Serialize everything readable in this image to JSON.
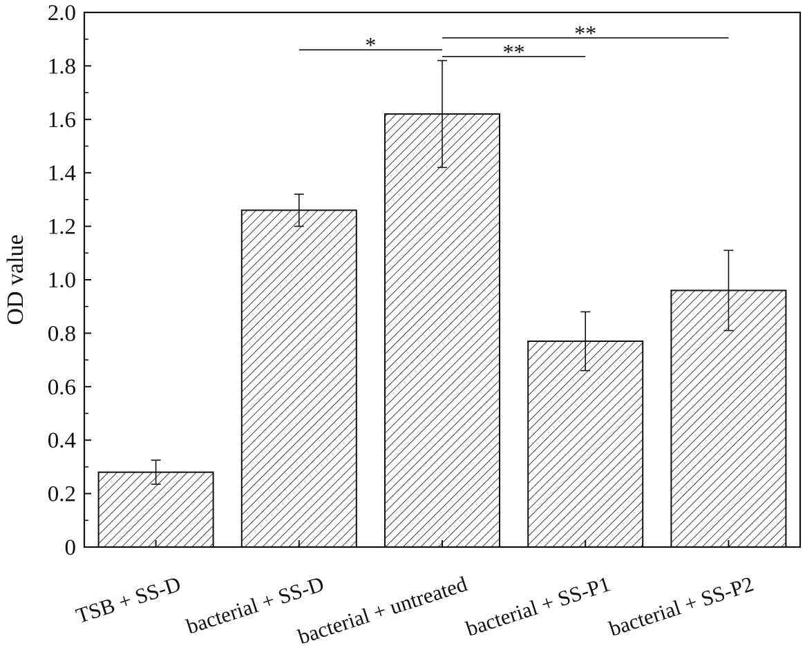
{
  "chart_data": {
    "type": "bar",
    "categories": [
      "TSB + SS-D",
      "bacterial + SS-D",
      "bacterial + untreated",
      "bacterial + SS-P1",
      "bacterial + SS-P2"
    ],
    "values": [
      0.28,
      1.26,
      1.62,
      0.77,
      0.96
    ],
    "errors": [
      0.045,
      0.06,
      0.2,
      0.11,
      0.15
    ],
    "xlabel": "",
    "ylabel": "OD value",
    "ylim": [
      0,
      2.0
    ],
    "yticks": [
      0,
      0.2,
      0.4,
      0.6,
      0.8,
      1.0,
      1.2,
      1.4,
      1.6,
      1.8,
      2.0
    ],
    "ytick_labels": [
      "0",
      "0.2",
      "0.4",
      "0.6",
      "0.8",
      "1.0",
      "1.2",
      "1.4",
      "1.6",
      "1.8",
      "2.0"
    ],
    "bar_fill": "diagonal hatch",
    "grid": false,
    "legend": "none",
    "significance": [
      {
        "from": 1,
        "to": 2,
        "label": "*",
        "level": 1.86
      },
      {
        "from": 2,
        "to": 3,
        "label": "**",
        "level": 1.835
      },
      {
        "from": 2,
        "to": 4,
        "label": "**",
        "level": 1.905
      }
    ],
    "colors": {
      "ink": "#111111",
      "background": "#ffffff"
    }
  }
}
